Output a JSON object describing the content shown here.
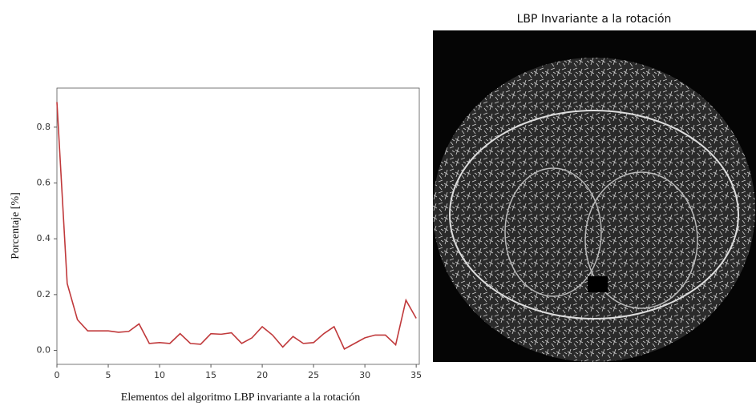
{
  "chart_data": {
    "type": "line",
    "x": [
      0,
      1,
      2,
      3,
      4,
      5,
      6,
      7,
      8,
      9,
      10,
      11,
      12,
      13,
      14,
      15,
      16,
      17,
      18,
      19,
      20,
      21,
      22,
      23,
      24,
      25,
      26,
      27,
      28,
      29,
      30,
      31,
      32,
      33,
      34,
      35
    ],
    "values": [
      0.89,
      0.24,
      0.11,
      0.07,
      0.07,
      0.07,
      0.065,
      0.068,
      0.095,
      0.025,
      0.028,
      0.025,
      0.06,
      0.025,
      0.022,
      0.06,
      0.058,
      0.063,
      0.025,
      0.045,
      0.085,
      0.055,
      0.012,
      0.05,
      0.025,
      0.028,
      0.06,
      0.085,
      0.005,
      0.025,
      0.045,
      0.055,
      0.055,
      0.02,
      0.18,
      0.115
    ],
    "color": "#c0393b",
    "xlim": [
      0,
      35.3
    ],
    "xticks": [
      0,
      5,
      10,
      15,
      20,
      25,
      30,
      35
    ],
    "ylim": [
      -0.05,
      0.94
    ],
    "yticks": [
      {
        "value": 0,
        "label": "0.0"
      },
      0.2,
      0.4,
      0.6,
      0.8
    ],
    "xlabel": "Elementos del algoritmo LBP invariante a la rotación",
    "ylabel": "Porcentaje [%]"
  },
  "image_panel": {
    "title": "LBP Invariante a la rotación"
  }
}
